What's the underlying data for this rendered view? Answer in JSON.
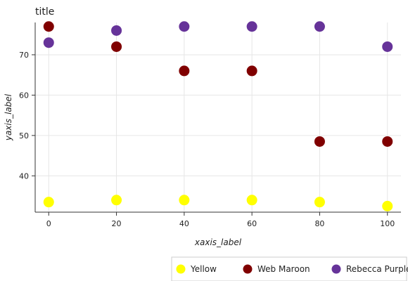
{
  "chart_data": {
    "type": "scatter",
    "title": "title",
    "xlabel": "xaxis_label",
    "ylabel": "yaxis_label",
    "xlim": [
      -4,
      104
    ],
    "ylim": [
      31,
      78
    ],
    "x_ticks": [
      0,
      20,
      40,
      60,
      80,
      100
    ],
    "y_ticks": [
      40,
      50,
      60,
      70
    ],
    "grid": true,
    "legend_position": "bottom-right",
    "series": [
      {
        "name": "Yellow",
        "color": "#ffff00",
        "x": [
          0,
          20,
          40,
          60,
          80,
          100
        ],
        "y": [
          33.5,
          34,
          34,
          34,
          33.5,
          32.5
        ]
      },
      {
        "name": "Web Maroon",
        "color": "#800000",
        "x": [
          0,
          20,
          40,
          60,
          80,
          100
        ],
        "y": [
          77,
          72,
          66,
          66,
          48.5,
          48.5
        ]
      },
      {
        "name": "Rebecca Purple",
        "color": "#663399",
        "x": [
          0,
          20,
          40,
          60,
          80,
          100
        ],
        "y": [
          73,
          76,
          77,
          77,
          77,
          72
        ]
      }
    ]
  }
}
